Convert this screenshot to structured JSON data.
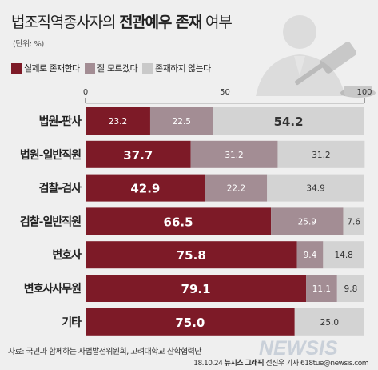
{
  "header": {
    "title_pre": "법조직역종사자의 ",
    "title_bold": "전관예우 존재",
    "title_post": " 여부",
    "unit": "(단위: %)"
  },
  "chart_data": {
    "type": "bar",
    "stacked": true,
    "orientation": "horizontal",
    "categories": [
      "법원-판사",
      "법원-일반직원",
      "검찰-검사",
      "검찰-일반직원",
      "변호사",
      "변호사사무원",
      "기타"
    ],
    "series": [
      {
        "name": "실제로 존재한다",
        "color": "#7d1a27",
        "values": [
          23.2,
          37.7,
          42.9,
          66.5,
          75.8,
          79.1,
          75.0
        ],
        "labels": [
          "23.2",
          "37.7",
          "42.9",
          "66.5",
          "75.8",
          "79.1",
          "75.0"
        ]
      },
      {
        "name": "잘 모르겠다",
        "color": "#a38d94",
        "values": [
          22.5,
          31.2,
          22.2,
          25.9,
          9.4,
          11.1,
          0
        ],
        "labels": [
          "22.5",
          "31.2",
          "22.2",
          "25.9",
          "9.4",
          "11.1",
          ""
        ]
      },
      {
        "name": "존재하지 않는다",
        "color": "#d3d3d3",
        "values": [
          54.2,
          31.2,
          34.9,
          7.6,
          14.8,
          9.8,
          25.0
        ],
        "labels": [
          "54.2",
          "31.2",
          "34.9",
          "7.6",
          "14.8",
          "9.8",
          "25.0"
        ]
      }
    ],
    "axis_ticks": [
      "0",
      "50",
      "100"
    ],
    "xlim": [
      0,
      100
    ],
    "legend_position": "top-left"
  },
  "footer": {
    "source": "자료: 국민과 함께하는 사법발전위원회, 고려대학교 산학협력단",
    "credit_date": "18.10.24 ",
    "credit_bold": "뉴시스 그래픽",
    "credit_rest": " 전진우 기자 618tue@newsis.com",
    "logo": "NEWSIS"
  }
}
